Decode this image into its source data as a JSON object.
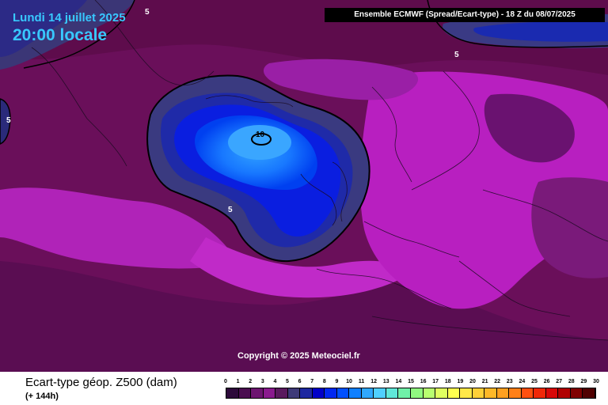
{
  "header": {
    "date": "Lundi 14 juillet 2025",
    "time": "20:00 locale",
    "model": "Ensemble ECMWF  (Spread/Ecart-type) - 18 Z du 08/07/2025"
  },
  "map": {
    "copyright": "Copyright © 2025 Meteociel.fr",
    "contour_labels": [
      "5",
      "5",
      "5",
      "5",
      "10"
    ]
  },
  "footer": {
    "title": "Ecart-type géop. Z500 (dam)",
    "subtitle": "(+ 144h)"
  },
  "legend": {
    "labels": [
      "0",
      "1",
      "2",
      "3",
      "4",
      "5",
      "6",
      "7",
      "8",
      "9",
      "10",
      "11",
      "12",
      "13",
      "14",
      "15",
      "16",
      "17",
      "18",
      "19",
      "20",
      "21",
      "22",
      "23",
      "24",
      "25",
      "26",
      "27",
      "28",
      "29",
      "30"
    ],
    "colors": [
      "#2d0a3a",
      "#4a0d50",
      "#6d1570",
      "#8a1a8e",
      "#5a1a5e",
      "#3e3a78",
      "#1e28a0",
      "#0000c8",
      "#0028f0",
      "#0050ff",
      "#1080ff",
      "#30a8ff",
      "#50d0ff",
      "#60e8d8",
      "#70f0a8",
      "#90f880",
      "#b8ff70",
      "#e0ff60",
      "#ffff50",
      "#ffe848",
      "#ffd038",
      "#ffb828",
      "#ffa020",
      "#ff8018",
      "#ff5010",
      "#f02808",
      "#d80808",
      "#b00000",
      "#800000",
      "#500000"
    ]
  }
}
